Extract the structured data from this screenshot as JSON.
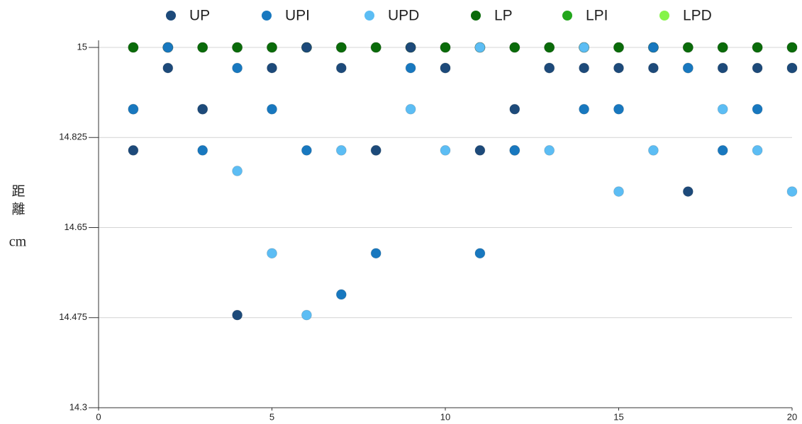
{
  "chart_data": {
    "type": "scatter",
    "y_label": "距離",
    "y_unit": "cm",
    "x": [
      1,
      2,
      3,
      4,
      5,
      6,
      7,
      8,
      9,
      10,
      11,
      12,
      13,
      14,
      15,
      16,
      17,
      18,
      19,
      20
    ],
    "xlim": [
      0,
      20
    ],
    "xticks": [
      0,
      5,
      10,
      15,
      20
    ],
    "ylim": [
      14.3,
      15
    ],
    "yticks": [
      14.3,
      14.475,
      14.65,
      14.825,
      15
    ],
    "grid": true,
    "legend": "top",
    "series": [
      {
        "name": "UP",
        "color": "#1d4a7a",
        "values": [
          14.8,
          14.96,
          14.88,
          14.48,
          14.96,
          15,
          14.96,
          14.8,
          15,
          14.96,
          14.8,
          14.88,
          14.96,
          14.96,
          14.96,
          14.96,
          14.72,
          14.96,
          14.96,
          14.96
        ]
      },
      {
        "name": "UPI",
        "color": "#1878bf",
        "values": [
          14.88,
          15,
          14.8,
          14.96,
          14.88,
          14.8,
          14.52,
          14.6,
          14.96,
          14.96,
          14.6,
          14.8,
          14.96,
          14.88,
          14.88,
          15,
          14.96,
          14.8,
          14.88,
          14.96
        ]
      },
      {
        "name": "UPD",
        "color": "#5cbdf4",
        "values": [
          14.88,
          15,
          14.88,
          14.76,
          14.6,
          14.48,
          14.8,
          14.8,
          14.88,
          14.8,
          15,
          14.8,
          14.8,
          15,
          14.72,
          14.8,
          14.96,
          14.88,
          14.8,
          14.72
        ]
      },
      {
        "name": "LP",
        "color": "#0a6b0a",
        "values": [
          15,
          15,
          15,
          15,
          15,
          15,
          15,
          15,
          15,
          15,
          15,
          15,
          15,
          15,
          15,
          15,
          15,
          15,
          15,
          15
        ]
      },
      {
        "name": "LPI",
        "color": "#22a61c",
        "values": [
          15,
          15,
          15,
          15,
          15,
          15,
          15,
          15,
          15,
          15,
          15,
          15,
          15,
          15,
          15,
          15,
          15,
          15,
          15,
          15
        ]
      },
      {
        "name": "LPD",
        "color": "#86f44a",
        "values": [
          15,
          15,
          15,
          15,
          15,
          15,
          15,
          15,
          15,
          15,
          15,
          15,
          15,
          15,
          15,
          15,
          15,
          15,
          15,
          15
        ]
      }
    ]
  }
}
